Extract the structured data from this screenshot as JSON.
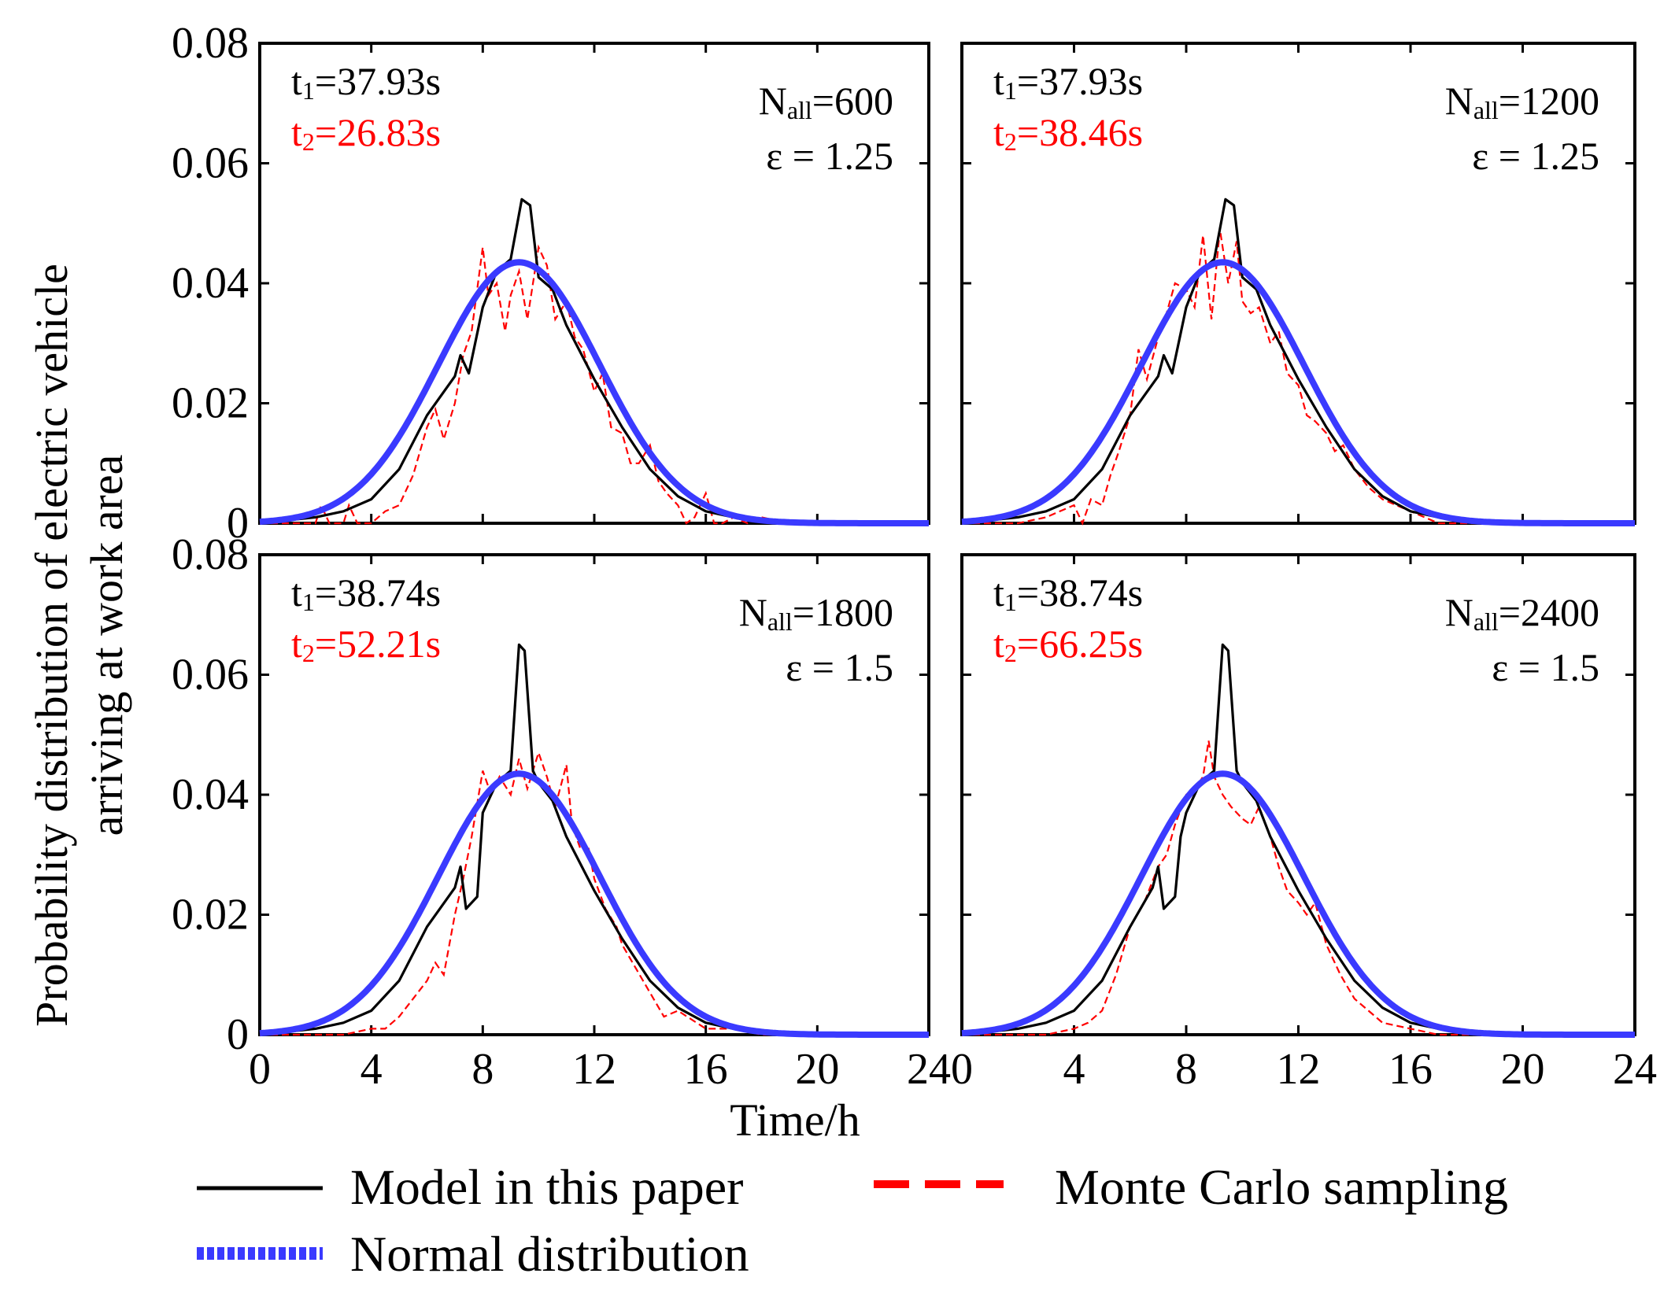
{
  "chart_data": {
    "type": "line",
    "ylabel_line1": "Probability distribution of electric vehicle",
    "ylabel_line2": "arriving at work area",
    "xlabel": "Time/h",
    "xlim": [
      0,
      24
    ],
    "ylim": [
      0,
      0.08
    ],
    "xticks": [
      0,
      4,
      8,
      12,
      16,
      20,
      24
    ],
    "yticks": [
      0,
      0.02,
      0.04,
      0.06,
      0.08
    ],
    "ytick_labels": [
      "0",
      "0.02",
      "0.04",
      "0.06",
      "0.08"
    ],
    "legend": {
      "model": "Model in this paper",
      "monte_carlo": "Monte Carlo sampling",
      "normal": "Normal distribution"
    },
    "colors": {
      "model": "#000000",
      "monte_carlo": "#ff0000",
      "normal": "#3a3aff"
    },
    "normal_fit": {
      "mean": 9.3,
      "std": 2.9,
      "peak": 0.0435
    },
    "panels": [
      {
        "t1": "37.93s",
        "t2": "26.83s",
        "n_all": "600",
        "epsilon": "1.25",
        "model_series": {
          "x": [
            0,
            1,
            2,
            3,
            4,
            5,
            6,
            7,
            7.2,
            7.5,
            8,
            8.5,
            9,
            9.4,
            9.7,
            10,
            10.5,
            11,
            12,
            13,
            14,
            15,
            16,
            17,
            18,
            20,
            22,
            24
          ],
          "y": [
            0.0002,
            0.0005,
            0.001,
            0.002,
            0.004,
            0.009,
            0.018,
            0.0245,
            0.028,
            0.025,
            0.036,
            0.042,
            0.044,
            0.054,
            0.053,
            0.041,
            0.039,
            0.033,
            0.024,
            0.016,
            0.009,
            0.0045,
            0.002,
            0.001,
            0.0004,
            0.0001,
            0,
            0
          ]
        },
        "monte_carlo": {
          "x": [
            0,
            1,
            2,
            2.2,
            2.5,
            3,
            3.2,
            3.5,
            4,
            4.5,
            5,
            5.5,
            6,
            6.3,
            6.6,
            7,
            7.3,
            7.6,
            8,
            8.2,
            8.5,
            8.8,
            9,
            9.3,
            9.6,
            10,
            10.3,
            10.6,
            11,
            11.3,
            11.6,
            12,
            12.3,
            12.6,
            13,
            13.3,
            13.6,
            14,
            14.3,
            14.6,
            15,
            15.3,
            15.6,
            16,
            16.3,
            16.6,
            17,
            17.5,
            18,
            19,
            20,
            22,
            24
          ],
          "y": [
            0,
            0,
            0,
            0.003,
            0,
            0,
            0.003,
            0,
            0,
            0.002,
            0.003,
            0.008,
            0.016,
            0.019,
            0.014,
            0.02,
            0.028,
            0.032,
            0.046,
            0.038,
            0.04,
            0.032,
            0.038,
            0.042,
            0.034,
            0.046,
            0.043,
            0.034,
            0.037,
            0.031,
            0.029,
            0.022,
            0.025,
            0.016,
            0.015,
            0.01,
            0.01,
            0.013,
            0.007,
            0.005,
            0.003,
            0,
            0.001,
            0.005,
            0,
            0,
            0.001,
            0,
            0.001,
            0,
            0,
            0,
            0
          ]
        }
      },
      {
        "t1": "37.93s",
        "t2": "38.46s",
        "n_all": "1200",
        "epsilon": "1.25",
        "model_series": {
          "x": [
            0,
            1,
            2,
            3,
            4,
            5,
            6,
            7,
            7.2,
            7.5,
            8,
            8.5,
            9,
            9.4,
            9.7,
            10,
            10.5,
            11,
            12,
            13,
            14,
            15,
            16,
            17,
            18,
            20,
            22,
            24
          ],
          "y": [
            0.0002,
            0.0005,
            0.001,
            0.002,
            0.004,
            0.009,
            0.018,
            0.0245,
            0.028,
            0.025,
            0.036,
            0.042,
            0.044,
            0.054,
            0.053,
            0.041,
            0.039,
            0.033,
            0.024,
            0.016,
            0.009,
            0.0045,
            0.002,
            0.001,
            0.0004,
            0.0001,
            0,
            0
          ]
        },
        "monte_carlo": {
          "x": [
            0,
            2,
            3,
            4,
            4.3,
            4.6,
            5,
            5.3,
            5.6,
            6,
            6.3,
            6.6,
            7,
            7.3,
            7.6,
            8,
            8.3,
            8.6,
            8.9,
            9.2,
            9.5,
            9.8,
            10,
            10.3,
            10.6,
            11,
            11.3,
            11.6,
            12,
            12.3,
            12.6,
            13,
            13.3,
            13.6,
            14,
            14.5,
            15,
            15.5,
            16,
            16.5,
            17,
            18,
            20,
            22,
            24
          ],
          "y": [
            0,
            0,
            0.001,
            0.003,
            0,
            0.004,
            0.003,
            0.008,
            0.012,
            0.018,
            0.029,
            0.024,
            0.031,
            0.035,
            0.04,
            0.039,
            0.036,
            0.048,
            0.034,
            0.049,
            0.04,
            0.047,
            0.037,
            0.035,
            0.036,
            0.03,
            0.032,
            0.025,
            0.023,
            0.018,
            0.017,
            0.015,
            0.012,
            0.013,
            0.009,
            0.006,
            0.004,
            0.003,
            0.002,
            0.001,
            0,
            0,
            0,
            0,
            0
          ]
        }
      },
      {
        "t1": "38.74s",
        "t2": "52.21s",
        "n_all": "1800",
        "epsilon": "1.5",
        "model_series": {
          "x": [
            0,
            1,
            2,
            3,
            4,
            5,
            6,
            7,
            7.2,
            7.4,
            7.8,
            8,
            8.5,
            9,
            9.3,
            9.5,
            9.8,
            10,
            10.5,
            11,
            12,
            13,
            14,
            15,
            16,
            17,
            18,
            20,
            22,
            24
          ],
          "y": [
            0.0002,
            0.0005,
            0.001,
            0.002,
            0.004,
            0.009,
            0.018,
            0.0245,
            0.028,
            0.021,
            0.023,
            0.037,
            0.042,
            0.044,
            0.065,
            0.064,
            0.044,
            0.042,
            0.039,
            0.033,
            0.024,
            0.016,
            0.009,
            0.0045,
            0.002,
            0.001,
            0.0004,
            0.0001,
            0,
            0
          ]
        },
        "monte_carlo": {
          "x": [
            0,
            2,
            3,
            4,
            4.5,
            5,
            5.5,
            6,
            6.3,
            6.6,
            7,
            7.3,
            7.6,
            8,
            8.3,
            8.6,
            9,
            9.3,
            9.6,
            10,
            10.3,
            10.6,
            11,
            11.2,
            11.5,
            11.8,
            12,
            12.4,
            12.8,
            13,
            13.5,
            14,
            14.5,
            15,
            16,
            17,
            18,
            20,
            22,
            24
          ],
          "y": [
            0,
            0,
            0,
            0.001,
            0.001,
            0.003,
            0.006,
            0.009,
            0.012,
            0.01,
            0.02,
            0.026,
            0.033,
            0.044,
            0.04,
            0.043,
            0.04,
            0.046,
            0.041,
            0.047,
            0.043,
            0.038,
            0.045,
            0.035,
            0.031,
            0.031,
            0.026,
            0.021,
            0.018,
            0.015,
            0.011,
            0.007,
            0.003,
            0.004,
            0.001,
            0.001,
            0,
            0,
            0,
            0
          ]
        }
      },
      {
        "t1": "38.74s",
        "t2": "66.25s",
        "n_all": "2400",
        "epsilon": "1.5",
        "model_series": {
          "x": [
            0,
            1,
            2,
            3,
            4,
            5,
            6,
            6.8,
            7,
            7.2,
            7.6,
            7.8,
            8,
            8.5,
            9,
            9.3,
            9.5,
            9.8,
            10,
            10.5,
            11,
            12,
            13,
            14,
            15,
            16,
            17,
            18,
            20,
            22,
            24
          ],
          "y": [
            0.0002,
            0.0005,
            0.001,
            0.002,
            0.004,
            0.009,
            0.018,
            0.0245,
            0.028,
            0.021,
            0.023,
            0.033,
            0.037,
            0.042,
            0.044,
            0.065,
            0.064,
            0.044,
            0.042,
            0.039,
            0.033,
            0.024,
            0.016,
            0.009,
            0.0045,
            0.002,
            0.001,
            0.0004,
            0.0001,
            0,
            0
          ]
        },
        "monte_carlo": {
          "x": [
            0,
            2,
            3,
            4,
            4.5,
            5,
            5.5,
            6,
            6.5,
            7,
            7.3,
            7.6,
            8,
            8.3,
            8.6,
            8.8,
            9,
            9.3,
            9.6,
            10,
            10.3,
            10.6,
            11,
            11.3,
            11.6,
            12,
            12.3,
            12.6,
            13,
            13.5,
            14,
            14.5,
            15,
            16,
            17,
            18,
            20,
            22,
            24
          ],
          "y": [
            0,
            0,
            0,
            0.001,
            0.002,
            0.004,
            0.01,
            0.018,
            0.022,
            0.028,
            0.03,
            0.035,
            0.04,
            0.041,
            0.043,
            0.049,
            0.043,
            0.04,
            0.038,
            0.036,
            0.035,
            0.038,
            0.033,
            0.028,
            0.024,
            0.022,
            0.02,
            0.022,
            0.015,
            0.01,
            0.006,
            0.004,
            0.002,
            0.001,
            0,
            0,
            0,
            0,
            0
          ]
        }
      }
    ]
  }
}
